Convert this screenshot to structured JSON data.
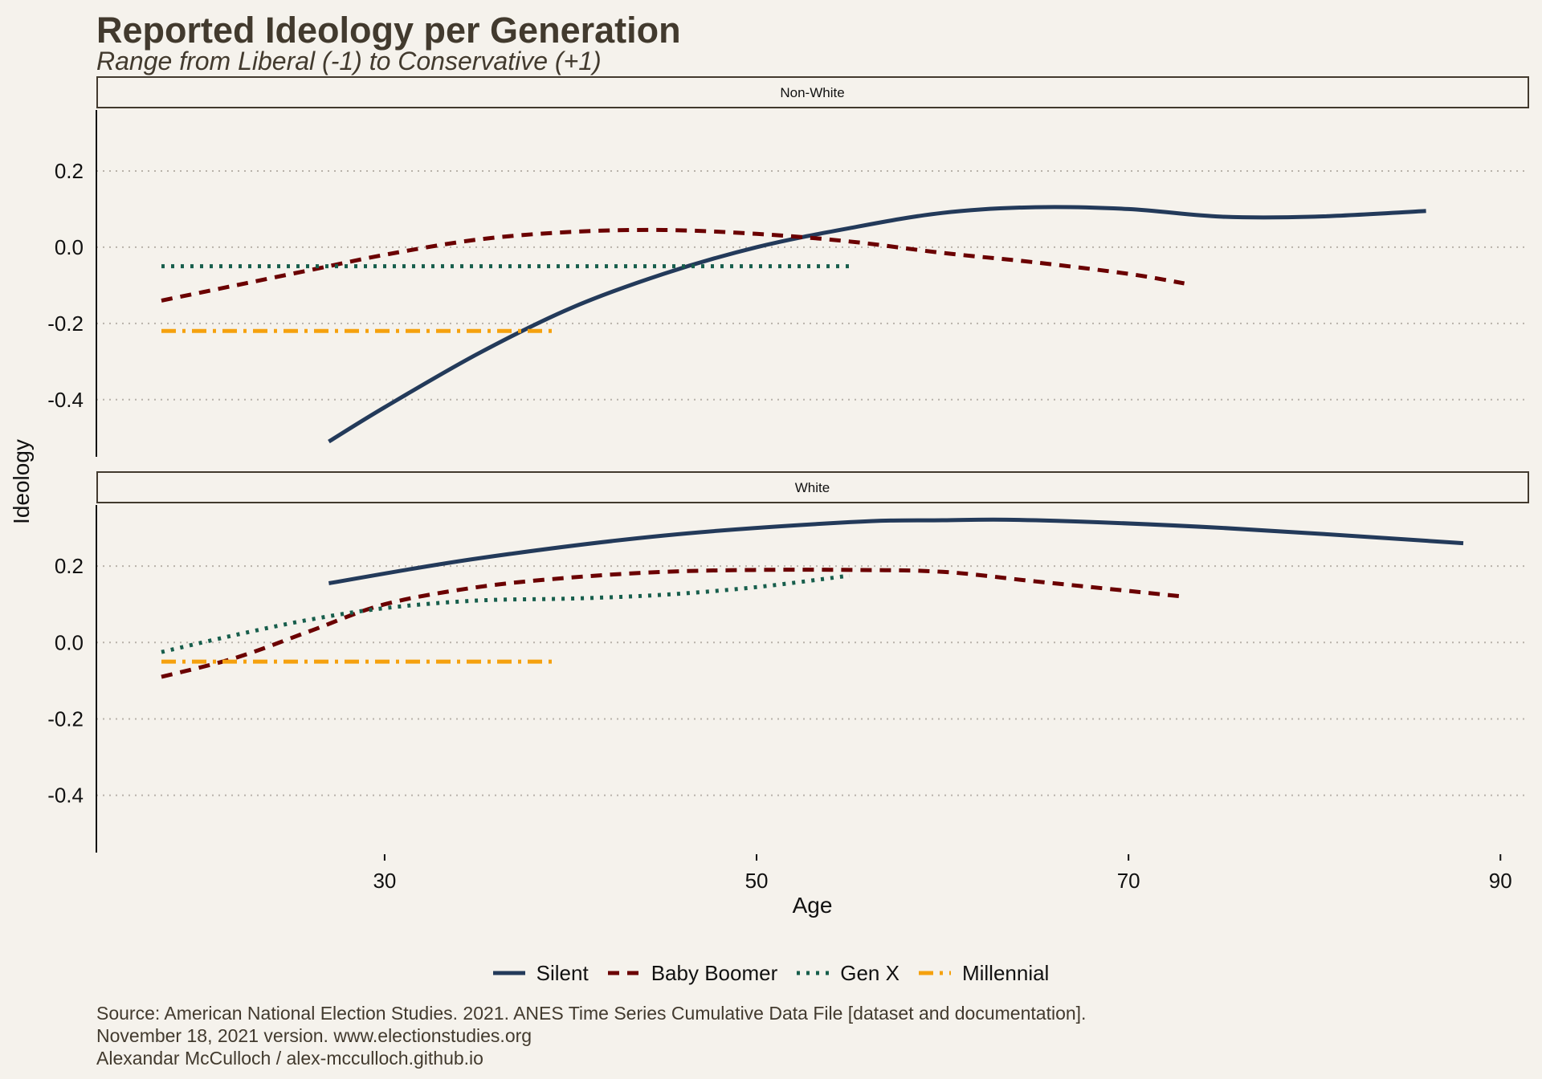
{
  "header": {
    "title": "Reported Ideology per Generation",
    "subtitle": "Range from Liberal (-1) to Conservative (+1)"
  },
  "caption": {
    "lines": [
      "Source: American National Election Studies. 2021. ANES Time Series Cumulative Data File [dataset and documentation].",
      "November 18, 2021 version. www.electionstudies.org",
      "Alexandar McCulloch / alex-mcculloch.github.io"
    ]
  },
  "colors": {
    "background": "#f5f2ec",
    "text": "#423a2e",
    "grid": "#b8b2aa",
    "silent": "#233a5a",
    "boomer": "#6b0000",
    "genx": "#175e4c",
    "millennial": "#f5a10e"
  },
  "chart_data": {
    "type": "line",
    "xlabel": "Age",
    "ylabel": "Ideology",
    "xlim": [
      14.5,
      91.5
    ],
    "ylim": [
      -0.55,
      0.36
    ],
    "x_ticks": [
      30,
      50,
      70,
      90
    ],
    "y_ticks": [
      0.2,
      0.0,
      -0.2,
      -0.4
    ],
    "x_tick_labels": [
      "30",
      "50",
      "70",
      "90"
    ],
    "y_tick_labels": [
      "0.2",
      "0.0",
      "-0.2",
      "-0.4"
    ],
    "grid": "horizontal dotted",
    "legend_position": "bottom",
    "legend": [
      "Silent",
      "Baby Boomer",
      "Gen X",
      "Millennial"
    ],
    "panels": [
      {
        "label": "Non-White",
        "series": [
          {
            "name": "Silent",
            "x": [
              27,
              30,
              35,
              40,
              45,
              50,
              55,
              60,
              65,
              70,
              75,
              80,
              86
            ],
            "y": [
              -0.51,
              -0.42,
              -0.28,
              -0.16,
              -0.07,
              0.0,
              0.05,
              0.09,
              0.105,
              0.1,
              0.08,
              0.08,
              0.095
            ]
          },
          {
            "name": "Baby Boomer",
            "x": [
              18,
              22,
              26,
              30,
              35,
              40,
              45,
              50,
              55,
              60,
              65,
              70,
              73
            ],
            "y": [
              -0.14,
              -0.1,
              -0.06,
              -0.02,
              0.02,
              0.04,
              0.045,
              0.035,
              0.015,
              -0.015,
              -0.04,
              -0.07,
              -0.095
            ]
          },
          {
            "name": "Gen X",
            "x": [
              18,
              55
            ],
            "y": [
              -0.05,
              -0.05
            ]
          },
          {
            "name": "Millennial",
            "x": [
              18,
              39
            ],
            "y": [
              -0.22,
              -0.22
            ]
          }
        ]
      },
      {
        "label": "White",
        "series": [
          {
            "name": "Silent",
            "x": [
              27,
              35,
              45,
              55,
              60,
              65,
              75,
              88
            ],
            "y": [
              0.155,
              0.22,
              0.28,
              0.315,
              0.32,
              0.32,
              0.3,
              0.26
            ]
          },
          {
            "name": "Baby Boomer",
            "x": [
              18,
              22,
              26,
              30,
              35,
              40,
              45,
              50,
              55,
              60,
              65,
              73
            ],
            "y": [
              -0.09,
              -0.04,
              0.03,
              0.1,
              0.145,
              0.17,
              0.185,
              0.19,
              0.19,
              0.185,
              0.16,
              0.12
            ]
          },
          {
            "name": "Gen X",
            "x": [
              18,
              22,
              26,
              30,
              35,
              40,
              45,
              50,
              55
            ],
            "y": [
              -0.025,
              0.02,
              0.06,
              0.09,
              0.11,
              0.115,
              0.125,
              0.145,
              0.175
            ]
          },
          {
            "name": "Millennial",
            "x": [
              18,
              39
            ],
            "y": [
              -0.05,
              -0.05
            ]
          }
        ]
      }
    ]
  }
}
